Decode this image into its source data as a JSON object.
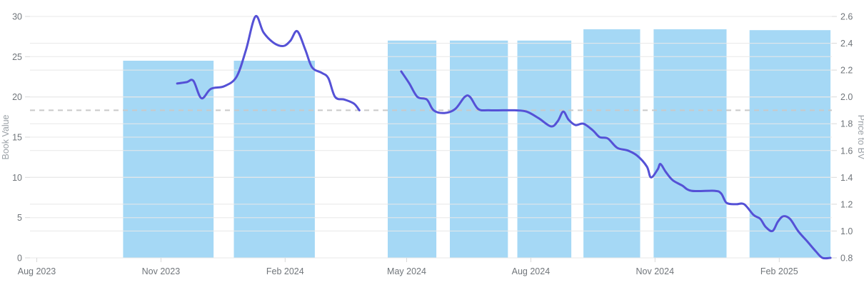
{
  "axes": {
    "y_left_title": "Book Value",
    "y_right_title": "Price to BV"
  },
  "chart_data": {
    "type": "bar",
    "subtype": "dual-axis bar + smoothed line time series",
    "title": "",
    "x_unit": "days since 2023-08-01",
    "x_range": [
      -5,
      589
    ],
    "x_ticks": [
      {
        "day": 0,
        "label": "Aug 2023"
      },
      {
        "day": 92,
        "label": "Nov 2023"
      },
      {
        "day": 184,
        "label": "Feb 2024"
      },
      {
        "day": 274,
        "label": "May 2024"
      },
      {
        "day": 366,
        "label": "Aug 2024"
      },
      {
        "day": 458,
        "label": "Nov 2024"
      },
      {
        "day": 550,
        "label": "Feb 2025"
      }
    ],
    "y_left": {
      "title": "Book Value",
      "range": [
        0,
        30
      ],
      "ticks": [
        0,
        5,
        10,
        15,
        20,
        25,
        30
      ]
    },
    "y_right": {
      "title": "Price to BV",
      "range": [
        0.8,
        2.6
      ],
      "ticks": [
        0.8,
        1.0,
        1.2,
        1.4,
        1.6,
        1.8,
        2.0,
        2.2,
        2.4,
        2.6
      ]
    },
    "reference_line": {
      "axis": "right",
      "value": 1.9,
      "style": "dashed"
    },
    "bars": {
      "series": "Book Value",
      "axis": "left",
      "periods": [
        {
          "start_day": 64,
          "end_day": 131,
          "value": 24.5
        },
        {
          "start_day": 146,
          "end_day": 206,
          "value": 24.5
        },
        {
          "start_day": 260,
          "end_day": 296,
          "value": 27.0
        },
        {
          "start_day": 306,
          "end_day": 349,
          "value": 27.0
        },
        {
          "start_day": 356,
          "end_day": 396,
          "value": 27.0
        },
        {
          "start_day": 405,
          "end_day": 447,
          "value": 28.4
        },
        {
          "start_day": 457,
          "end_day": 511,
          "value": 28.4
        },
        {
          "start_day": 528,
          "end_day": 588,
          "value": 28.3
        }
      ]
    },
    "line": {
      "series": "Price to BV",
      "axis": "right",
      "segments": [
        [
          [
            104,
            2.1
          ],
          [
            111,
            2.11
          ],
          [
            116,
            2.12
          ],
          [
            122,
            1.99
          ],
          [
            129,
            2.06
          ],
          [
            139,
            2.08
          ],
          [
            148,
            2.15
          ],
          [
            155,
            2.35
          ],
          [
            162,
            2.6
          ],
          [
            168,
            2.48
          ],
          [
            176,
            2.4
          ],
          [
            183,
            2.38
          ],
          [
            188,
            2.42
          ],
          [
            193,
            2.49
          ],
          [
            199,
            2.35
          ],
          [
            204,
            2.22
          ],
          [
            211,
            2.18
          ],
          [
            216,
            2.14
          ],
          [
            221,
            2.0
          ],
          [
            228,
            1.98
          ],
          [
            235,
            1.95
          ],
          [
            239,
            1.9
          ]
        ],
        [
          [
            270,
            2.19
          ],
          [
            276,
            2.1
          ],
          [
            282,
            2.0
          ],
          [
            289,
            1.98
          ],
          [
            294,
            1.9
          ],
          [
            302,
            1.88
          ],
          [
            310,
            1.91
          ],
          [
            317,
            2.0
          ],
          [
            321,
            2.0
          ],
          [
            327,
            1.91
          ],
          [
            335,
            1.9
          ],
          [
            354,
            1.9
          ],
          [
            363,
            1.89
          ],
          [
            372,
            1.84
          ],
          [
            381,
            1.78
          ],
          [
            386,
            1.82
          ],
          [
            390,
            1.89
          ],
          [
            394,
            1.83
          ],
          [
            399,
            1.79
          ],
          [
            405,
            1.8
          ],
          [
            412,
            1.75
          ],
          [
            417,
            1.7
          ],
          [
            423,
            1.69
          ],
          [
            430,
            1.62
          ],
          [
            438,
            1.6
          ],
          [
            445,
            1.56
          ],
          [
            452,
            1.48
          ],
          [
            455,
            1.4
          ],
          [
            460,
            1.46
          ],
          [
            462,
            1.5
          ],
          [
            466,
            1.44
          ],
          [
            471,
            1.38
          ],
          [
            478,
            1.34
          ],
          [
            485,
            1.3
          ],
          [
            502,
            1.3
          ],
          [
            507,
            1.28
          ],
          [
            511,
            1.21
          ],
          [
            518,
            1.2
          ],
          [
            524,
            1.2
          ],
          [
            531,
            1.12
          ],
          [
            536,
            1.09
          ],
          [
            540,
            1.03
          ],
          [
            545,
            1.0
          ],
          [
            549,
            1.07
          ],
          [
            553,
            1.11
          ],
          [
            558,
            1.09
          ],
          [
            564,
            1.0
          ],
          [
            571,
            0.92
          ],
          [
            577,
            0.85
          ],
          [
            582,
            0.8
          ],
          [
            588,
            0.8
          ]
        ]
      ]
    },
    "grid": {
      "horizontal": true,
      "vertical": false,
      "drawn_over_bars": true
    },
    "legend": "none"
  },
  "colors": {
    "bar_fill": "#a5d8f5",
    "line_stroke": "#5551d6",
    "reference_dash": "#c9c9c9",
    "grid_line": "#e8e8e8",
    "tick_mark": "#d9d9d9",
    "tick_text": "#70757a",
    "axis_title_text": "#9aa0a6",
    "background": "#ffffff"
  }
}
